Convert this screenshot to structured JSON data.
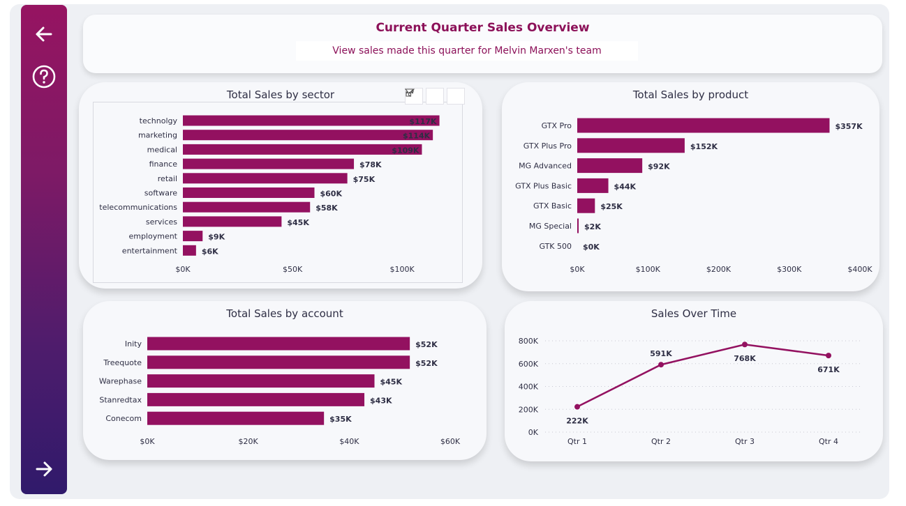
{
  "header": {
    "title": "Current Quarter Sales Overview",
    "subtitle": "View sales made this quarter for Melvin Marxen's team"
  },
  "colors": {
    "bar": "#931160",
    "text": "#2e2e44",
    "accent": "#8c1159"
  },
  "icons": {
    "back": "arrow-left-icon",
    "help": "question-circle-icon",
    "next": "arrow-right-icon",
    "filter": "filter-icon",
    "focus": "focus-mode-icon",
    "more": "more-options-icon"
  },
  "chart_data": [
    {
      "type": "bar",
      "orientation": "horizontal",
      "title": "Total Sales by sector",
      "categories": [
        "technolgy",
        "marketing",
        "medical",
        "finance",
        "retail",
        "software",
        "telecommunications",
        "services",
        "employment",
        "entertainment"
      ],
      "values": [
        117,
        114,
        109,
        78,
        75,
        60,
        58,
        45,
        9,
        6
      ],
      "labels": [
        "$117K",
        "$114K",
        "$109K",
        "$78K",
        "$75K",
        "$60K",
        "$58K",
        "$45K",
        "$9K",
        "$6K"
      ],
      "ticks": [
        0,
        50,
        100
      ],
      "tick_labels": [
        "$0K",
        "$50K",
        "$100K"
      ],
      "xlim": [
        0,
        120
      ]
    },
    {
      "type": "bar",
      "orientation": "horizontal",
      "title": "Total Sales by product",
      "categories": [
        "GTX Pro",
        "GTX Plus Pro",
        "MG Advanced",
        "GTX Plus Basic",
        "GTX Basic",
        "MG Special",
        "GTK 500"
      ],
      "values": [
        357,
        152,
        92,
        44,
        25,
        2,
        0
      ],
      "labels": [
        "$357K",
        "$152K",
        "$92K",
        "$44K",
        "$25K",
        "$2K",
        "$0K"
      ],
      "ticks": [
        0,
        100,
        200,
        300,
        400
      ],
      "tick_labels": [
        "$0K",
        "$100K",
        "$200K",
        "$300K",
        "$400K"
      ],
      "xlim": [
        0,
        400
      ]
    },
    {
      "type": "bar",
      "orientation": "horizontal",
      "title": "Total Sales by account",
      "categories": [
        "Inity",
        "Treequote",
        "Warephase",
        "Stanredtax",
        "Conecom"
      ],
      "values": [
        52,
        52,
        45,
        43,
        35
      ],
      "labels": [
        "$52K",
        "$52K",
        "$45K",
        "$43K",
        "$35K"
      ],
      "ticks": [
        0,
        20,
        40,
        60
      ],
      "tick_labels": [
        "$0K",
        "$20K",
        "$40K",
        "$60K"
      ],
      "xlim": [
        0,
        60
      ]
    },
    {
      "type": "line",
      "title": "Sales Over Time",
      "categories": [
        "Qtr 1",
        "Qtr 2",
        "Qtr 3",
        "Qtr 4"
      ],
      "values": [
        222,
        591,
        768,
        671
      ],
      "labels": [
        "222K",
        "591K",
        "768K",
        "671K"
      ],
      "ticks": [
        0,
        200,
        400,
        600,
        800
      ],
      "tick_labels": [
        "0K",
        "200K",
        "400K",
        "600K",
        "800K"
      ],
      "ylim": [
        0,
        800
      ],
      "grid": true
    }
  ]
}
